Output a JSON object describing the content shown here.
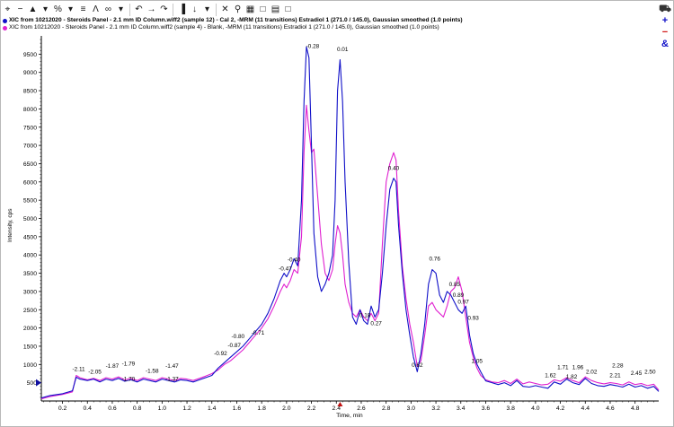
{
  "toolbar": {
    "buttons": [
      {
        "name": "zoom-in-icon",
        "glyph": "⌖"
      },
      {
        "name": "zoom-out-icon",
        "glyph": "−"
      },
      {
        "name": "show-peaks-icon",
        "glyph": "▲"
      },
      {
        "name": "dropdown-icon",
        "glyph": "▾"
      },
      {
        "name": "percent-icon",
        "glyph": "%"
      },
      {
        "name": "dropdown-icon",
        "glyph": "▾"
      },
      {
        "name": "threshold-icon",
        "glyph": "≡"
      },
      {
        "name": "peak-label-icon",
        "glyph": "Λ"
      },
      {
        "name": "link-icon",
        "glyph": "∞"
      },
      {
        "name": "dropdown-icon",
        "glyph": "▾"
      },
      {
        "name": "undo-icon",
        "glyph": "↶"
      },
      {
        "name": "arrow-right-icon",
        "glyph": "→"
      },
      {
        "name": "redo-icon",
        "glyph": "↷"
      },
      {
        "name": "bar-graph-icon",
        "glyph": "▐"
      },
      {
        "name": "mark-peak-icon",
        "glyph": "↓"
      },
      {
        "name": "dropdown-icon",
        "glyph": "▾"
      },
      {
        "name": "delete-icon",
        "glyph": "✕"
      },
      {
        "name": "magnify-icon",
        "glyph": "⚲"
      },
      {
        "name": "grid-icon",
        "glyph": "▦"
      },
      {
        "name": "window-icon",
        "glyph": "□"
      },
      {
        "name": "table-icon",
        "glyph": "▤"
      },
      {
        "name": "window-icon",
        "glyph": "□"
      }
    ],
    "right": [
      {
        "name": "car-icon",
        "glyph": "⛟"
      },
      {
        "name": "plus-icon",
        "glyph": "+"
      },
      {
        "name": "minus-icon",
        "glyph": "−"
      },
      {
        "name": "ampersand-icon",
        "glyph": "&"
      }
    ]
  },
  "legend": [
    {
      "text": "XIC from 10212020 - Steroids Panel - 2.1 mm ID Column.wiff2 (sample 12) - Cal 2, -MRM (11 transitions) Estradiol 1 (271.0 / 145.0), Gaussian smoothed (1.0 points)",
      "color": "#1010c8"
    },
    {
      "text": "XIC from 10212020 - Steroids Panel - 2.1 mm ID Column.wiff2 (sample 4) - Blank, -MRM (11 transitions) Estradiol 1 (271.0 / 145.0), Gaussian smoothed (1.0 points)",
      "color": "#e020d0"
    }
  ],
  "chart_data": {
    "type": "line",
    "xlabel": "Time, min",
    "ylabel": "Intensity, cps",
    "xlim": [
      0.03,
      4.99
    ],
    "ylim": [
      0,
      10000
    ],
    "xticks": [
      0.2,
      0.4,
      0.6,
      0.8,
      1.0,
      1.2,
      1.4,
      1.6,
      1.8,
      2.0,
      2.2,
      2.4,
      2.6,
      2.8,
      3.0,
      3.2,
      3.4,
      3.6,
      3.8,
      4.0,
      4.2,
      4.4,
      4.6,
      4.8
    ],
    "xtick_labels": [
      "0.2",
      "0.4",
      "0.6",
      "0.8",
      "1.0",
      "1.2",
      "1.4",
      "1.6",
      "1.8",
      "2.0",
      "2.2",
      "2.4",
      "2.6",
      "2.8",
      "3.0",
      "3.2",
      "3.4",
      "3.6",
      "3.8",
      "4.0",
      "4.2",
      "4.4",
      "4.6",
      "4.8"
    ],
    "yticks": [
      500,
      1000,
      1500,
      2000,
      2500,
      3000,
      3500,
      4000,
      4500,
      5000,
      5500,
      6000,
      6500,
      7000,
      7500,
      8000,
      8500,
      9000,
      9500
    ],
    "ytick_labels": [
      "500",
      "1000",
      "1500",
      "2000",
      "2500",
      "3000",
      "3500",
      "4000",
      "4500",
      "5000",
      "5500",
      "6000",
      "6500",
      "7000",
      "7500",
      "8000",
      "8500",
      "9000",
      "9500"
    ],
    "grid": false,
    "legend": "top-left",
    "series": [
      {
        "color": "#1010c8",
        "x": [
          0.03,
          0.1,
          0.2,
          0.28,
          0.31,
          0.34,
          0.4,
          0.45,
          0.5,
          0.55,
          0.6,
          0.65,
          0.7,
          0.75,
          0.8,
          0.85,
          0.9,
          0.95,
          1.0,
          1.05,
          1.1,
          1.15,
          1.2,
          1.25,
          1.3,
          1.35,
          1.4,
          1.45,
          1.5,
          1.55,
          1.6,
          1.65,
          1.7,
          1.75,
          1.8,
          1.85,
          1.9,
          1.95,
          1.98,
          2.0,
          2.03,
          2.06,
          2.09,
          2.12,
          2.14,
          2.16,
          2.18,
          2.2,
          2.22,
          2.25,
          2.28,
          2.31,
          2.34,
          2.37,
          2.39,
          2.41,
          2.43,
          2.45,
          2.47,
          2.5,
          2.53,
          2.56,
          2.59,
          2.62,
          2.65,
          2.68,
          2.71,
          2.74,
          2.77,
          2.8,
          2.83,
          2.86,
          2.88,
          2.9,
          2.93,
          2.96,
          2.99,
          3.02,
          3.05,
          3.08,
          3.11,
          3.14,
          3.17,
          3.2,
          3.23,
          3.26,
          3.29,
          3.32,
          3.35,
          3.38,
          3.41,
          3.44,
          3.47,
          3.5,
          3.53,
          3.56,
          3.6,
          3.65,
          3.7,
          3.75,
          3.8,
          3.85,
          3.9,
          3.95,
          4.0,
          4.05,
          4.1,
          4.15,
          4.2,
          4.25,
          4.3,
          4.35,
          4.4,
          4.45,
          4.5,
          4.55,
          4.6,
          4.65,
          4.7,
          4.75,
          4.8,
          4.85,
          4.9,
          4.95,
          4.99
        ],
        "y": [
          80,
          150,
          200,
          280,
          650,
          600,
          560,
          600,
          520,
          600,
          560,
          620,
          540,
          580,
          520,
          600,
          560,
          520,
          600,
          560,
          520,
          580,
          560,
          520,
          580,
          640,
          700,
          900,
          1050,
          1200,
          1350,
          1500,
          1700,
          1900,
          2100,
          2400,
          2800,
          3300,
          3500,
          3400,
          3600,
          3900,
          3700,
          5500,
          8200,
          9700,
          9400,
          7000,
          4600,
          3400,
          3000,
          3200,
          3500,
          4000,
          5500,
          8500,
          9350,
          8200,
          6000,
          3800,
          2300,
          2100,
          2500,
          2200,
          2100,
          2600,
          2300,
          2500,
          3500,
          4800,
          5800,
          6100,
          6000,
          4800,
          3500,
          2500,
          1800,
          1200,
          800,
          1300,
          2100,
          3200,
          3600,
          3500,
          2900,
          2700,
          3000,
          2900,
          2700,
          2500,
          2400,
          2600,
          1800,
          1300,
          1000,
          800,
          550,
          500,
          450,
          500,
          420,
          560,
          400,
          380,
          420,
          380,
          350,
          520,
          460,
          600,
          500,
          450,
          620,
          480,
          420,
          400,
          450,
          420,
          380,
          460,
          380,
          420,
          350,
          400,
          260
        ]
      },
      {
        "color": "#e020d0",
        "x": [
          0.03,
          0.1,
          0.2,
          0.28,
          0.31,
          0.34,
          0.4,
          0.45,
          0.5,
          0.55,
          0.6,
          0.65,
          0.7,
          0.75,
          0.8,
          0.85,
          0.9,
          0.95,
          1.0,
          1.05,
          1.1,
          1.15,
          1.2,
          1.25,
          1.3,
          1.35,
          1.4,
          1.45,
          1.5,
          1.55,
          1.6,
          1.65,
          1.7,
          1.75,
          1.8,
          1.85,
          1.9,
          1.95,
          1.98,
          2.0,
          2.03,
          2.06,
          2.09,
          2.12,
          2.14,
          2.16,
          2.18,
          2.2,
          2.22,
          2.25,
          2.28,
          2.31,
          2.34,
          2.37,
          2.39,
          2.41,
          2.43,
          2.45,
          2.47,
          2.5,
          2.53,
          2.56,
          2.59,
          2.62,
          2.65,
          2.68,
          2.71,
          2.74,
          2.77,
          2.8,
          2.83,
          2.86,
          2.88,
          2.9,
          2.93,
          2.96,
          2.99,
          3.02,
          3.05,
          3.08,
          3.11,
          3.14,
          3.17,
          3.2,
          3.23,
          3.26,
          3.29,
          3.32,
          3.35,
          3.38,
          3.41,
          3.44,
          3.47,
          3.5,
          3.53,
          3.56,
          3.6,
          3.65,
          3.7,
          3.75,
          3.8,
          3.85,
          3.9,
          3.95,
          4.0,
          4.05,
          4.1,
          4.15,
          4.2,
          4.25,
          4.3,
          4.35,
          4.4,
          4.45,
          4.5,
          4.55,
          4.6,
          4.65,
          4.7,
          4.75,
          4.8,
          4.85,
          4.9,
          4.95,
          4.99
        ],
        "y": [
          60,
          120,
          180,
          250,
          700,
          640,
          580,
          620,
          560,
          640,
          600,
          660,
          580,
          620,
          560,
          640,
          600,
          560,
          640,
          600,
          560,
          620,
          600,
          560,
          620,
          680,
          750,
          850,
          1000,
          1100,
          1250,
          1400,
          1600,
          1800,
          2000,
          2250,
          2600,
          3000,
          3200,
          3100,
          3300,
          3600,
          3500,
          4500,
          6800,
          8100,
          7400,
          6800,
          6900,
          5600,
          4300,
          3500,
          3300,
          3600,
          4300,
          4800,
          4600,
          4000,
          3200,
          2700,
          2400,
          2300,
          2500,
          2300,
          2200,
          2400,
          2200,
          2400,
          4300,
          6000,
          6500,
          6800,
          6600,
          5200,
          3700,
          2800,
          2100,
          1600,
          950,
          1100,
          1800,
          2600,
          2700,
          2500,
          2400,
          2300,
          2600,
          3000,
          3100,
          3400,
          3000,
          2300,
          1600,
          1200,
          900,
          700,
          580,
          520,
          500,
          560,
          480,
          600,
          470,
          520,
          480,
          440,
          460,
          580,
          540,
          640,
          560,
          500,
          660,
          560,
          500,
          470,
          500,
          480,
          440,
          520,
          450,
          480,
          420,
          460,
          300
        ]
      }
    ],
    "annotations": [
      {
        "x": 0.33,
        "y": 780,
        "text": "-2.11"
      },
      {
        "x": 0.46,
        "y": 700,
        "text": "-2.05"
      },
      {
        "x": 0.6,
        "y": 860,
        "text": "-1.87"
      },
      {
        "x": 0.73,
        "y": 920,
        "text": "-1.79"
      },
      {
        "x": 0.73,
        "y": 500,
        "text": "-1.70"
      },
      {
        "x": 0.92,
        "y": 730,
        "text": "-1.58"
      },
      {
        "x": 1.08,
        "y": 860,
        "text": "-1.47"
      },
      {
        "x": 1.08,
        "y": 500,
        "text": "-1.37"
      },
      {
        "x": 1.47,
        "y": 1200,
        "text": "-0.92"
      },
      {
        "x": 1.58,
        "y": 1420,
        "text": "-0.87"
      },
      {
        "x": 1.61,
        "y": 1670,
        "text": "-0.80"
      },
      {
        "x": 1.77,
        "y": 1770,
        "text": "-0.71"
      },
      {
        "x": 1.99,
        "y": 3530,
        "text": "-0.47"
      },
      {
        "x": 2.06,
        "y": 3770,
        "text": "-0.40"
      },
      {
        "x": 2.21,
        "y": 9620,
        "text": "-0.28"
      },
      {
        "x": 2.45,
        "y": 9530,
        "text": "0.01"
      },
      {
        "x": 2.63,
        "y": 2250,
        "text": "0.18"
      },
      {
        "x": 2.72,
        "y": 2030,
        "text": "0.27"
      },
      {
        "x": 2.86,
        "y": 6280,
        "text": "0.40"
      },
      {
        "x": 3.05,
        "y": 890,
        "text": "0.62"
      },
      {
        "x": 3.19,
        "y": 3790,
        "text": "0.76"
      },
      {
        "x": 3.35,
        "y": 3090,
        "text": "0.85"
      },
      {
        "x": 3.38,
        "y": 2800,
        "text": "0.89"
      },
      {
        "x": 3.42,
        "y": 2620,
        "text": "0.97"
      },
      {
        "x": 3.5,
        "y": 2180,
        "text": "0.93"
      },
      {
        "x": 3.53,
        "y": 1000,
        "text": "1.05"
      },
      {
        "x": 4.12,
        "y": 600,
        "text": "1.62"
      },
      {
        "x": 4.22,
        "y": 820,
        "text": "1.71"
      },
      {
        "x": 4.29,
        "y": 570,
        "text": "1.82"
      },
      {
        "x": 4.34,
        "y": 820,
        "text": "1.96"
      },
      {
        "x": 4.45,
        "y": 700,
        "text": "2.02"
      },
      {
        "x": 4.64,
        "y": 600,
        "text": "2.21"
      },
      {
        "x": 4.66,
        "y": 870,
        "text": "2.28"
      },
      {
        "x": 4.81,
        "y": 660,
        "text": "2.45"
      },
      {
        "x": 4.92,
        "y": 700,
        "text": "2.50"
      }
    ]
  }
}
